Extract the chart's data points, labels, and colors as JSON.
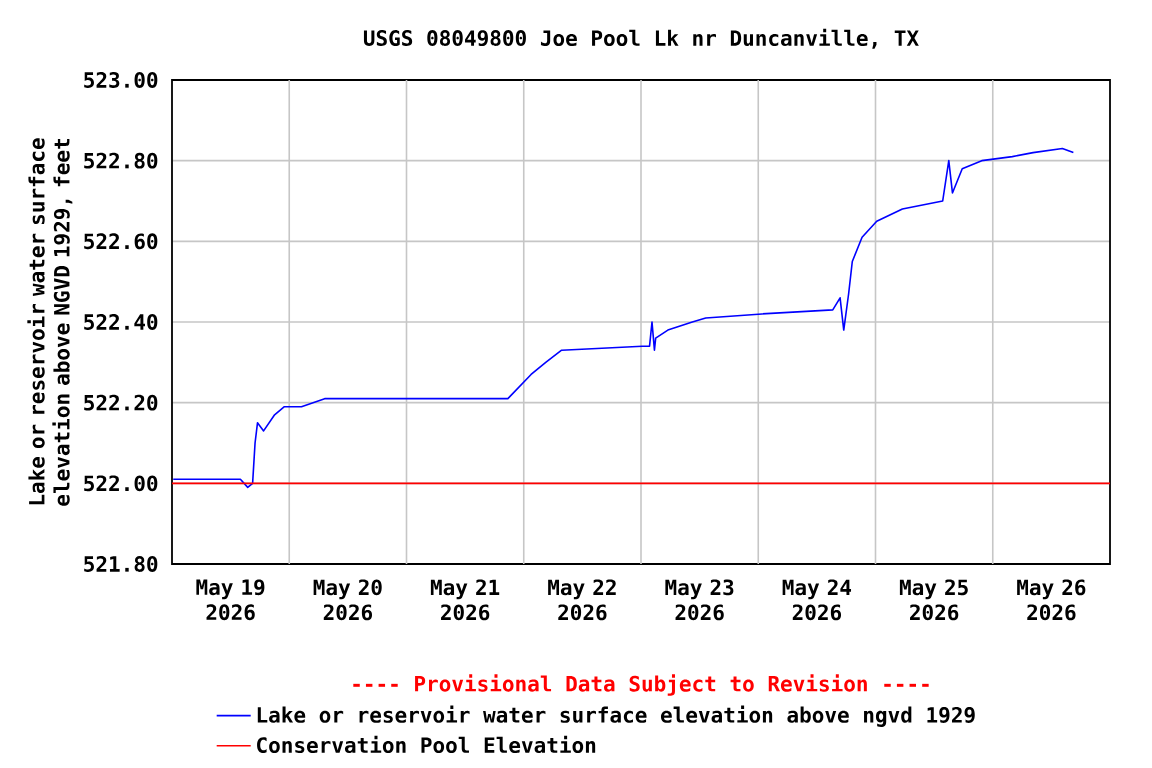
{
  "chart_data": {
    "type": "line",
    "title": "USGS 08049800 Joe Pool Lk nr Duncanville, TX",
    "ylabel": "Lake or reservoir water surface elevation above NGVD 1929, feet",
    "annotations": [
      "---- Provisional Data Subject to Revision ----"
    ],
    "xlim": [
      "2026-05-19T00:00",
      "2026-05-27T00:00"
    ],
    "xticks": [
      {
        "value": "2026-05-19T12:00",
        "label": "May 19 2026"
      },
      {
        "value": "2026-05-20T00:00",
        "label": null
      },
      {
        "value": "2026-05-20T12:00",
        "label": "May 20 2026"
      },
      {
        "value": "2026-05-21T00:00",
        "label": null
      },
      {
        "value": "2026-05-21T12:00",
        "label": "May 21 2026"
      },
      {
        "value": "2026-05-22T00:00",
        "label": null
      },
      {
        "value": "2026-05-22T12:00",
        "label": "May 22 2026"
      },
      {
        "value": "2026-05-23T00:00",
        "label": null
      },
      {
        "value": "2026-05-23T12:00",
        "label": "May 23 2026"
      },
      {
        "value": "2026-05-24T00:00",
        "label": null
      },
      {
        "value": "2026-05-24T12:00",
        "label": "May 24 2026"
      },
      {
        "value": "2026-05-25T00:00",
        "label": null
      },
      {
        "value": "2026-05-25T12:00",
        "label": "May 25 2026"
      },
      {
        "value": "2026-05-26T00:00",
        "label": null
      },
      {
        "value": "2026-05-26T12:00",
        "label": "May 26 2026"
      }
    ],
    "ylim": [
      521.8,
      523.0
    ],
    "yticks": [
      {
        "value": 521.8,
        "label": "521.80"
      },
      {
        "value": 522.0,
        "label": "522.00"
      },
      {
        "value": 522.2,
        "label": "522.20"
      },
      {
        "value": 522.4,
        "label": "522.40"
      },
      {
        "value": 522.6,
        "label": "522.60"
      },
      {
        "value": 522.8,
        "label": "522.80"
      },
      {
        "value": 523.0,
        "label": "523.00"
      }
    ],
    "grid": true,
    "legend": "bottom",
    "ref_lines": [
      {
        "axis": "y",
        "value": 522.0,
        "label": "Conservation Pool Elevation",
        "color": "#ff0000"
      }
    ],
    "series": [
      {
        "name": "Lake or reservoir water surface elevation above ngvd 1929",
        "color": "#0000ff",
        "x": [
          "2026-05-19T00:15",
          "2026-05-19T14:00",
          "2026-05-19T15:30",
          "2026-05-19T16:30",
          "2026-05-19T17:00",
          "2026-05-19T17:30",
          "2026-05-19T18:45",
          "2026-05-19T21:00",
          "2026-05-19T23:00",
          "2026-05-20T02:30",
          "2026-05-20T07:15",
          "2026-05-21T20:45",
          "2026-05-22T01:30",
          "2026-05-22T04:30",
          "2026-05-22T07:45",
          "2026-05-23T00:15",
          "2026-05-23T01:45",
          "2026-05-23T02:15",
          "2026-05-23T02:45",
          "2026-05-23T03:00",
          "2026-05-23T05:30",
          "2026-05-23T10:30",
          "2026-05-23T13:15",
          "2026-05-24T00:45",
          "2026-05-24T15:15",
          "2026-05-24T16:45",
          "2026-05-24T17:30",
          "2026-05-24T18:30",
          "2026-05-24T19:15",
          "2026-05-24T21:15",
          "2026-05-25T00:15",
          "2026-05-25T05:30",
          "2026-05-25T13:45",
          "2026-05-25T15:00",
          "2026-05-25T15:45",
          "2026-05-25T17:45",
          "2026-05-25T21:45",
          "2026-05-26T04:00",
          "2026-05-26T08:15",
          "2026-05-26T14:15",
          "2026-05-26T16:30"
        ],
        "values": [
          522.01,
          522.01,
          521.99,
          522.0,
          522.1,
          522.15,
          522.13,
          522.17,
          522.19,
          522.19,
          522.21,
          522.21,
          522.27,
          522.3,
          522.33,
          522.34,
          522.34,
          522.4,
          522.33,
          522.36,
          522.38,
          522.4,
          522.41,
          522.42,
          522.43,
          522.46,
          522.38,
          522.47,
          522.55,
          522.61,
          522.65,
          522.68,
          522.7,
          522.8,
          522.72,
          522.78,
          522.8,
          522.81,
          522.82,
          522.83,
          522.82
        ]
      }
    ]
  }
}
